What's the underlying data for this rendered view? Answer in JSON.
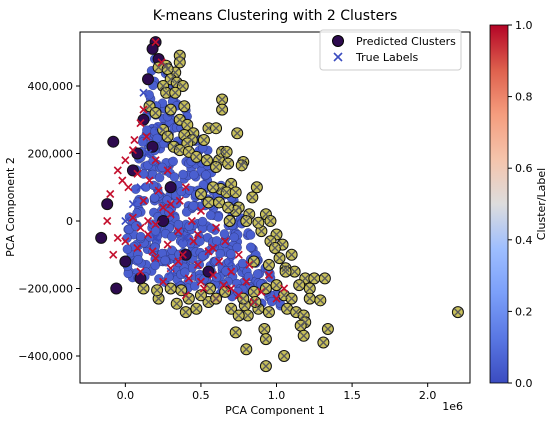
{
  "chart_data": {
    "type": "scatter",
    "title": "K-means Clustering with 2 Clusters",
    "xlabel": "PCA Component 1",
    "ylabel": "PCA Component 2",
    "x_offset_label": "1e6",
    "xlim": [
      -0.3,
      2.28
    ],
    "ylim": [
      -480000,
      560000
    ],
    "x_ticks": [
      0.0,
      0.5,
      1.0,
      1.5,
      2.0
    ],
    "x_tick_labels": [
      "0.0",
      "0.5",
      "1.0",
      "1.5",
      "2.0"
    ],
    "y_ticks": [
      -400000,
      -200000,
      0,
      200000,
      400000
    ],
    "y_tick_labels": [
      "−400,000",
      "−200,000",
      "0",
      "200,000",
      "400,000"
    ],
    "grid": false,
    "legend": {
      "position": "upper right",
      "entries": [
        "Predicted Clusters",
        "True Labels"
      ]
    },
    "colorbar": {
      "label": "Cluster/Label",
      "range": [
        0.0,
        1.0
      ],
      "ticks": [
        0.0,
        0.2,
        0.4,
        0.6,
        0.8,
        1.0
      ],
      "tick_labels": [
        "0.0",
        "0.2",
        "0.4",
        "0.6",
        "0.8",
        "1.0"
      ],
      "colormap": "coolwarm"
    },
    "series": [
      {
        "name": "Predicted Clusters",
        "marker": "circle",
        "points": [
          [
            0.2,
            530000,
            0
          ],
          [
            0.18,
            510000,
            0
          ],
          [
            0.22,
            480000,
            0
          ],
          [
            0.27,
            460000,
            1
          ],
          [
            0.22,
            455000,
            1
          ],
          [
            0.36,
            490000,
            1
          ],
          [
            0.36,
            470000,
            1
          ],
          [
            0.33,
            440000,
            1
          ],
          [
            0.28,
            450000,
            1
          ],
          [
            0.3,
            420000,
            1
          ],
          [
            0.34,
            410000,
            1
          ],
          [
            0.38,
            400000,
            1
          ],
          [
            0.25,
            400000,
            1
          ],
          [
            0.27,
            380000,
            1
          ],
          [
            0.33,
            380000,
            1
          ],
          [
            0.39,
            340000,
            1
          ],
          [
            0.3,
            330000,
            1
          ],
          [
            0.36,
            300000,
            1
          ],
          [
            0.41,
            285000,
            1
          ],
          [
            0.55,
            275000,
            1
          ],
          [
            0.6,
            275000,
            1
          ],
          [
            0.45,
            260000,
            1
          ],
          [
            0.39,
            255000,
            1
          ],
          [
            0.44,
            240000,
            1
          ],
          [
            0.52,
            240000,
            1
          ],
          [
            0.41,
            230000,
            1
          ],
          [
            0.32,
            220000,
            1
          ],
          [
            0.36,
            210000,
            1
          ],
          [
            0.42,
            205000,
            1
          ],
          [
            0.47,
            190000,
            1
          ],
          [
            0.54,
            180000,
            1
          ],
          [
            0.62,
            180000,
            1
          ],
          [
            0.68,
            170000,
            1
          ],
          [
            0.6,
            160000,
            1
          ],
          [
            0.64,
            205000,
            1
          ],
          [
            0.67,
            205000,
            1
          ],
          [
            0.7,
            110000,
            1
          ],
          [
            0.63,
            95000,
            1
          ],
          [
            0.67,
            85000,
            1
          ],
          [
            0.5,
            80000,
            1
          ],
          [
            0.73,
            85000,
            1
          ],
          [
            0.84,
            70000,
            1
          ],
          [
            0.78,
            175000,
            1
          ],
          [
            0.77,
            165000,
            1
          ],
          [
            0.87,
            100000,
            1
          ],
          [
            0.74,
            260000,
            1
          ],
          [
            0.64,
            360000,
            1
          ],
          [
            0.64,
            330000,
            1
          ],
          [
            0.75,
            40000,
            1
          ],
          [
            0.73,
            30000,
            1
          ],
          [
            0.82,
            20000,
            1
          ],
          [
            0.8,
            0,
            1
          ],
          [
            0.93,
            20000,
            1
          ],
          [
            0.69,
            0,
            1
          ],
          [
            0.9,
            -30000,
            1
          ],
          [
            1.0,
            -40000,
            1
          ],
          [
            0.96,
            -60000,
            1
          ],
          [
            1.04,
            -70000,
            1
          ],
          [
            0.99,
            -80000,
            1
          ],
          [
            1.1,
            -100000,
            1
          ],
          [
            1.02,
            -110000,
            1
          ],
          [
            0.85,
            -120000,
            1
          ],
          [
            0.95,
            -130000,
            1
          ],
          [
            1.06,
            -140000,
            1
          ],
          [
            1.12,
            -150000,
            1
          ],
          [
            1.19,
            -170000,
            1
          ],
          [
            1.25,
            -170000,
            1
          ],
          [
            1.15,
            -190000,
            1
          ],
          [
            1.22,
            -200000,
            1
          ],
          [
            1.32,
            -170000,
            1
          ],
          [
            1.0,
            -190000,
            1
          ],
          [
            0.93,
            -200000,
            1
          ],
          [
            0.85,
            -210000,
            1
          ],
          [
            1.05,
            -220000,
            1
          ],
          [
            1.1,
            -230000,
            1
          ],
          [
            1.22,
            -230000,
            1
          ],
          [
            1.29,
            -235000,
            1
          ],
          [
            0.79,
            -250000,
            1
          ],
          [
            0.7,
            -260000,
            1
          ],
          [
            0.88,
            -260000,
            1
          ],
          [
            0.95,
            -270000,
            1
          ],
          [
            1.07,
            -260000,
            1
          ],
          [
            1.13,
            -270000,
            1
          ],
          [
            1.18,
            -280000,
            1
          ],
          [
            1.19,
            -300000,
            1
          ],
          [
            0.81,
            -280000,
            1
          ],
          [
            0.75,
            -280000,
            1
          ],
          [
            0.4,
            -270000,
            1
          ],
          [
            0.34,
            -245000,
            1
          ],
          [
            0.47,
            -260000,
            1
          ],
          [
            0.55,
            -240000,
            1
          ],
          [
            0.5,
            -220000,
            1
          ],
          [
            0.42,
            -230000,
            1
          ],
          [
            0.37,
            -205000,
            1
          ],
          [
            0.3,
            -200000,
            1
          ],
          [
            0.22,
            -230000,
            1
          ],
          [
            0.21,
            -205000,
            1
          ],
          [
            0.12,
            -200000,
            1
          ],
          [
            0.6,
            -230000,
            1
          ],
          [
            0.66,
            -210000,
            1
          ],
          [
            0.73,
            -330000,
            1
          ],
          [
            0.92,
            -320000,
            1
          ],
          [
            1.16,
            -310000,
            1
          ],
          [
            1.18,
            -340000,
            1
          ],
          [
            1.31,
            -360000,
            1
          ],
          [
            1.34,
            -320000,
            1
          ],
          [
            0.93,
            -350000,
            1
          ],
          [
            1.05,
            -400000,
            1
          ],
          [
            0.93,
            -430000,
            1
          ],
          [
            0.8,
            -380000,
            1
          ],
          [
            2.2,
            -270000,
            1
          ],
          [
            0.16,
            340000,
            1
          ],
          [
            0.2,
            320000,
            1
          ],
          [
            0.25,
            270000,
            1
          ],
          [
            0.28,
            250000,
            1
          ],
          [
            0.58,
            100000,
            1
          ],
          [
            0.55,
            55000,
            1
          ],
          [
            0.62,
            55000,
            1
          ],
          [
            0.68,
            40000,
            1
          ],
          [
            0.88,
            -5000,
            1
          ],
          [
            0.96,
            0,
            1
          ],
          [
            1.06,
            -150000,
            1
          ],
          [
            0.78,
            -230000,
            1
          ],
          [
            0.86,
            -240000,
            1
          ],
          [
            0.56,
            -200000,
            1
          ],
          [
            -0.08,
            235000,
            0
          ],
          [
            -0.06,
            -200000,
            0
          ],
          [
            -0.16,
            -50000,
            0
          ],
          [
            0.1,
            -170000,
            0
          ],
          [
            0.0,
            -120000,
            0
          ],
          [
            0.05,
            150000,
            0
          ],
          [
            0.12,
            300000,
            0
          ],
          [
            0.15,
            420000,
            0
          ],
          [
            0.08,
            200000,
            0
          ],
          [
            -0.12,
            50000,
            0
          ],
          [
            0.25,
            0,
            0
          ],
          [
            0.4,
            -100000,
            0
          ],
          [
            0.55,
            -150000,
            0
          ],
          [
            0.3,
            100000,
            0
          ],
          [
            0.18,
            220000,
            0
          ]
        ]
      },
      {
        "name": "True Labels",
        "marker": "x",
        "points": [
          [
            0.2,
            530000,
            1
          ],
          [
            0.24,
            470000,
            1
          ],
          [
            0.12,
            330000,
            1
          ],
          [
            0.1,
            290000,
            1
          ],
          [
            0.14,
            250000,
            1
          ],
          [
            0.05,
            210000,
            1
          ],
          [
            0.0,
            180000,
            1
          ],
          [
            -0.05,
            150000,
            1
          ],
          [
            0.08,
            140000,
            1
          ],
          [
            0.16,
            120000,
            1
          ],
          [
            0.02,
            100000,
            1
          ],
          [
            -0.1,
            80000,
            1
          ],
          [
            0.12,
            60000,
            1
          ],
          [
            0.25,
            40000,
            1
          ],
          [
            0.3,
            20000,
            1
          ],
          [
            0.05,
            10000,
            1
          ],
          [
            -0.12,
            0,
            1
          ],
          [
            0.2,
            -10000,
            1
          ],
          [
            0.35,
            -30000,
            1
          ],
          [
            0.15,
            -40000,
            1
          ],
          [
            -0.05,
            -50000,
            1
          ],
          [
            0.45,
            -60000,
            1
          ],
          [
            0.28,
            -70000,
            1
          ],
          [
            0.08,
            -80000,
            1
          ],
          [
            0.55,
            -90000,
            1
          ],
          [
            0.38,
            -100000,
            1
          ],
          [
            0.2,
            -110000,
            1
          ],
          [
            0.62,
            -120000,
            1
          ],
          [
            0.48,
            -130000,
            1
          ],
          [
            0.3,
            -140000,
            1
          ],
          [
            0.7,
            -150000,
            1
          ],
          [
            0.58,
            -160000,
            1
          ],
          [
            0.42,
            -170000,
            1
          ],
          [
            0.8,
            -180000,
            1
          ],
          [
            0.65,
            -190000,
            1
          ],
          [
            0.52,
            -200000,
            1
          ],
          [
            0.9,
            -210000,
            1
          ],
          [
            0.75,
            -220000,
            1
          ],
          [
            0.6,
            -230000,
            1
          ],
          [
            1.0,
            -230000,
            1
          ],
          [
            0.85,
            -240000,
            1
          ],
          [
            0.3,
            50000,
            1
          ],
          [
            0.22,
            90000,
            1
          ],
          [
            0.4,
            100000,
            1
          ],
          [
            0.1,
            -20000,
            1
          ],
          [
            0.0,
            -60000,
            1
          ],
          [
            0.18,
            -90000,
            1
          ],
          [
            0.35,
            -120000,
            1
          ],
          [
            0.5,
            -180000,
            1
          ],
          [
            0.7,
            -200000,
            1
          ],
          [
            0.44,
            0,
            1
          ],
          [
            0.5,
            30000,
            1
          ],
          [
            0.6,
            -20000,
            1
          ],
          [
            0.66,
            -60000,
            1
          ],
          [
            0.75,
            -100000,
            1
          ],
          [
            0.82,
            -130000,
            1
          ],
          [
            0.95,
            -160000,
            1
          ],
          [
            1.05,
            -200000,
            1
          ],
          [
            0.2,
            180000,
            1
          ],
          [
            0.28,
            150000,
            1
          ],
          [
            0.06,
            240000,
            1
          ],
          [
            -0.02,
            120000,
            1
          ],
          [
            0.15,
            0,
            1
          ],
          [
            0.25,
            -180000,
            1
          ],
          [
            0.4,
            -220000,
            1
          ],
          [
            0.1,
            -150000,
            1
          ],
          [
            -0.08,
            -100000,
            1
          ],
          [
            0.36,
            60000,
            1
          ],
          [
            0.48,
            -40000,
            1
          ],
          [
            0.58,
            -80000,
            1
          ],
          [
            0.12,
            380000,
            0
          ],
          [
            0.15,
            200000,
            0
          ],
          [
            0.05,
            50000,
            0
          ],
          [
            0.2,
            -50000,
            0
          ],
          [
            0.3,
            -150000,
            0
          ],
          [
            0.0,
            0,
            0
          ],
          [
            0.1,
            100000,
            0
          ],
          [
            0.4,
            -50000,
            0
          ],
          [
            0.7,
            -120000,
            0
          ],
          [
            0.22,
            280000,
            0
          ]
        ]
      }
    ]
  }
}
